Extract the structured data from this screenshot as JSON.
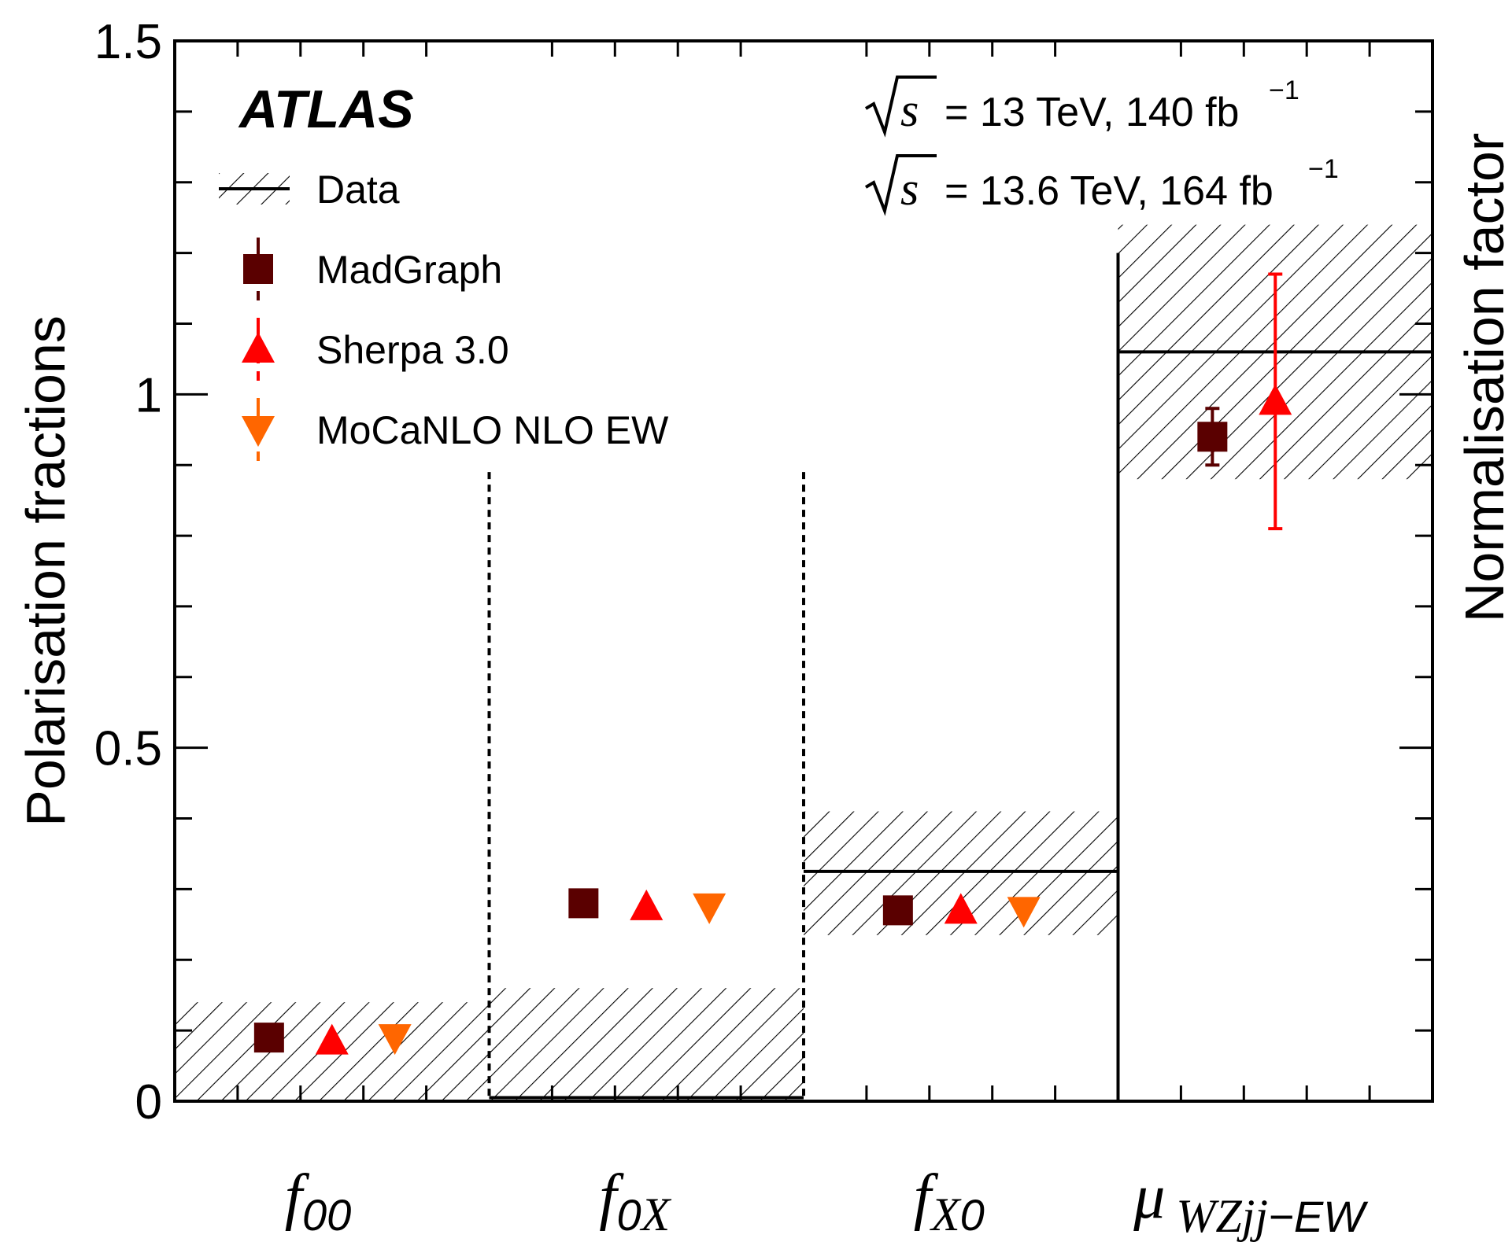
{
  "chart_data": {
    "type": "scatter",
    "experiment": "ATLAS",
    "energy_lines": [
      {
        "sqrt": "s",
        "text": "= 13 TeV, 140 fb",
        "sup": "−1"
      },
      {
        "sqrt": "s",
        "text": "= 13.6 TeV, 164 fb",
        "sup": "−1"
      }
    ],
    "ylabel_left": "Polarisation fractions",
    "ylabel_right": "Normalisation factor",
    "ylim": [
      0,
      1.5
    ],
    "yticks": [
      "0",
      "0.5",
      "1",
      "1.5"
    ],
    "ytick_values": [
      0,
      0.5,
      1,
      1.5
    ],
    "categories": [
      {
        "id": "f00",
        "main": "f",
        "sub": "00",
        "sub_italic": ""
      },
      {
        "id": "f0X",
        "main": "f",
        "sub": "0",
        "sub_italic": "X"
      },
      {
        "id": "fX0",
        "main": "f",
        "sub_italic": "X",
        "sub": "0"
      },
      {
        "id": "mu",
        "main": "μ",
        "sub_italic": "WZjj",
        "sub": "−EW"
      }
    ],
    "legend": [
      {
        "id": "data",
        "label": "Data"
      },
      {
        "id": "madgraph",
        "label": "MadGraph",
        "color": "#5a0000"
      },
      {
        "id": "sherpa",
        "label": "Sherpa 3.0",
        "color": "#ff0000"
      },
      {
        "id": "mocanlo",
        "label": "MoCaNLO NLO EW",
        "color": "#ff6600"
      }
    ],
    "data_measurement": [
      {
        "category": "f00",
        "value": 0.0,
        "band": [
          0.0,
          0.14
        ]
      },
      {
        "category": "f0X",
        "value": 0.005,
        "band": [
          0.0,
          0.16
        ]
      },
      {
        "category": "fX0",
        "value": 0.325,
        "band": [
          0.235,
          0.41
        ]
      },
      {
        "category": "mu",
        "value": 1.06,
        "band": [
          0.88,
          1.24
        ]
      }
    ],
    "series": [
      {
        "name": "MadGraph",
        "marker": "square",
        "color": "#5a0000",
        "values": [
          0.09,
          0.28,
          0.27,
          0.94
        ],
        "errors": [
          0,
          0,
          0,
          0.04
        ]
      },
      {
        "name": "Sherpa 3.0",
        "marker": "triangle-up",
        "color": "#ff0000",
        "values": [
          0.085,
          0.275,
          0.27,
          0.99
        ],
        "errors": [
          0,
          0,
          0,
          0.18
        ]
      },
      {
        "name": "MoCaNLO NLO EW",
        "marker": "triangle-down",
        "color": "#ff6600",
        "values": [
          0.09,
          0.275,
          0.27,
          null
        ],
        "errors": [
          0,
          0,
          0,
          0
        ]
      }
    ]
  }
}
